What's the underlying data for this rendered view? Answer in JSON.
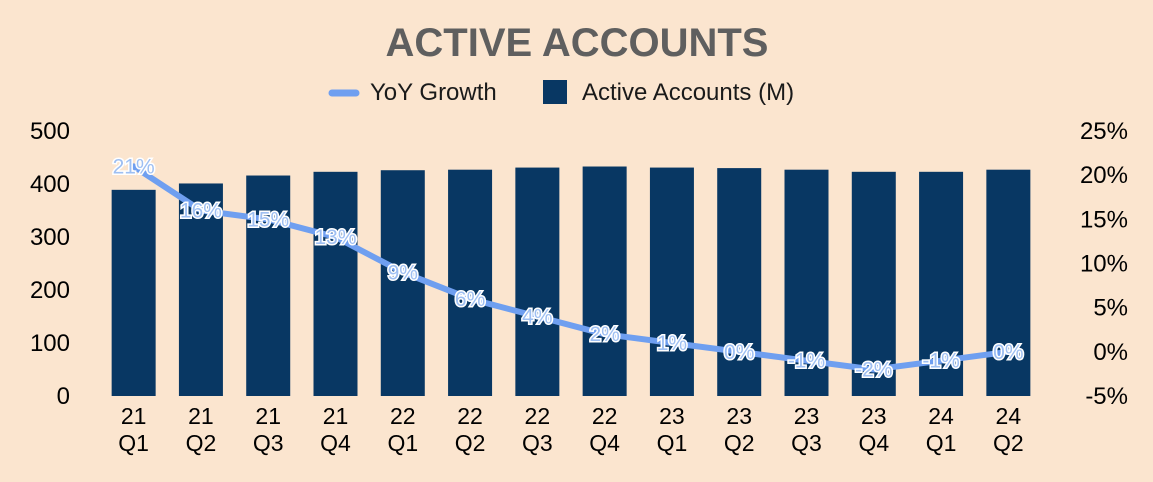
{
  "chart_data": {
    "type": "bar+line",
    "title": "ACTIVE ACCOUNTS",
    "categories": [
      [
        "21",
        "Q1"
      ],
      [
        "21",
        "Q2"
      ],
      [
        "21",
        "Q3"
      ],
      [
        "21",
        "Q4"
      ],
      [
        "22",
        "Q1"
      ],
      [
        "22",
        "Q2"
      ],
      [
        "22",
        "Q3"
      ],
      [
        "22",
        "Q4"
      ],
      [
        "23",
        "Q1"
      ],
      [
        "23",
        "Q2"
      ],
      [
        "23",
        "Q3"
      ],
      [
        "23",
        "Q4"
      ],
      [
        "24",
        "Q1"
      ],
      [
        "24",
        "Q2"
      ]
    ],
    "series": [
      {
        "name": "YoY Growth",
        "type": "line",
        "axis": "right",
        "color": "#6f9ff0",
        "values": [
          21,
          16,
          15,
          13,
          9,
          6,
          4,
          2,
          1,
          0,
          -1,
          -2,
          -1,
          0
        ],
        "labels": [
          "21%",
          "16%",
          "15%",
          "13%",
          "9%",
          "6%",
          "4%",
          "2%",
          "1%",
          "0%",
          "-1%",
          "-2%",
          "-1%",
          "0%"
        ]
      },
      {
        "name": "Active Accounts (M)",
        "type": "bar",
        "axis": "left",
        "color": "#083763",
        "values": [
          389,
          401,
          416,
          423,
          426,
          427,
          431,
          433,
          431,
          430,
          427,
          423,
          423,
          427
        ]
      }
    ],
    "left_axis": {
      "ylim": [
        0,
        500
      ],
      "ticks": [
        "0",
        "100",
        "200",
        "300",
        "400",
        "500"
      ]
    },
    "right_axis": {
      "ylim": [
        -5,
        25
      ],
      "ticks": [
        "-5%",
        "0%",
        "5%",
        "10%",
        "15%",
        "20%",
        "25%"
      ]
    },
    "legend_position": "top-center",
    "grid": false
  }
}
